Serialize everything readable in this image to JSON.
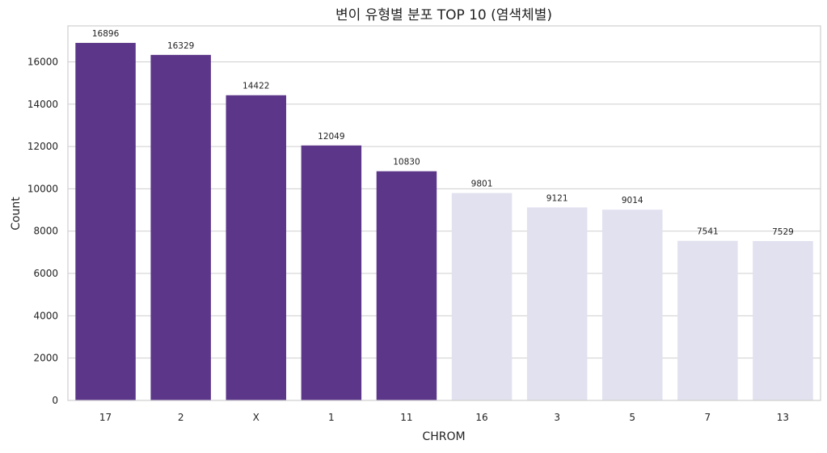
{
  "chart_data": {
    "type": "bar",
    "title": "변이 유형별 분포 TOP 10 (염색체별)",
    "xlabel": "CHROM",
    "ylabel": "Count",
    "categories": [
      "17",
      "2",
      "X",
      "1",
      "11",
      "16",
      "3",
      "5",
      "7",
      "13"
    ],
    "values": [
      16896,
      16329,
      14422,
      12049,
      10830,
      9801,
      9121,
      9014,
      7541,
      7529
    ],
    "data_labels": [
      "16896",
      "16329",
      "14422",
      "12049",
      "10830",
      "9801",
      "9121",
      "9014",
      "7541",
      "7529"
    ],
    "yticks": [
      "0",
      "2000",
      "4000",
      "6000",
      "8000",
      "10000",
      "12000",
      "14000",
      "16000"
    ],
    "ylim": [
      0,
      17700
    ],
    "grid": "horizontal",
    "highlight_count": 5,
    "colors": {
      "highlight": "#5b3689",
      "normal": "#e1e1f0"
    }
  }
}
